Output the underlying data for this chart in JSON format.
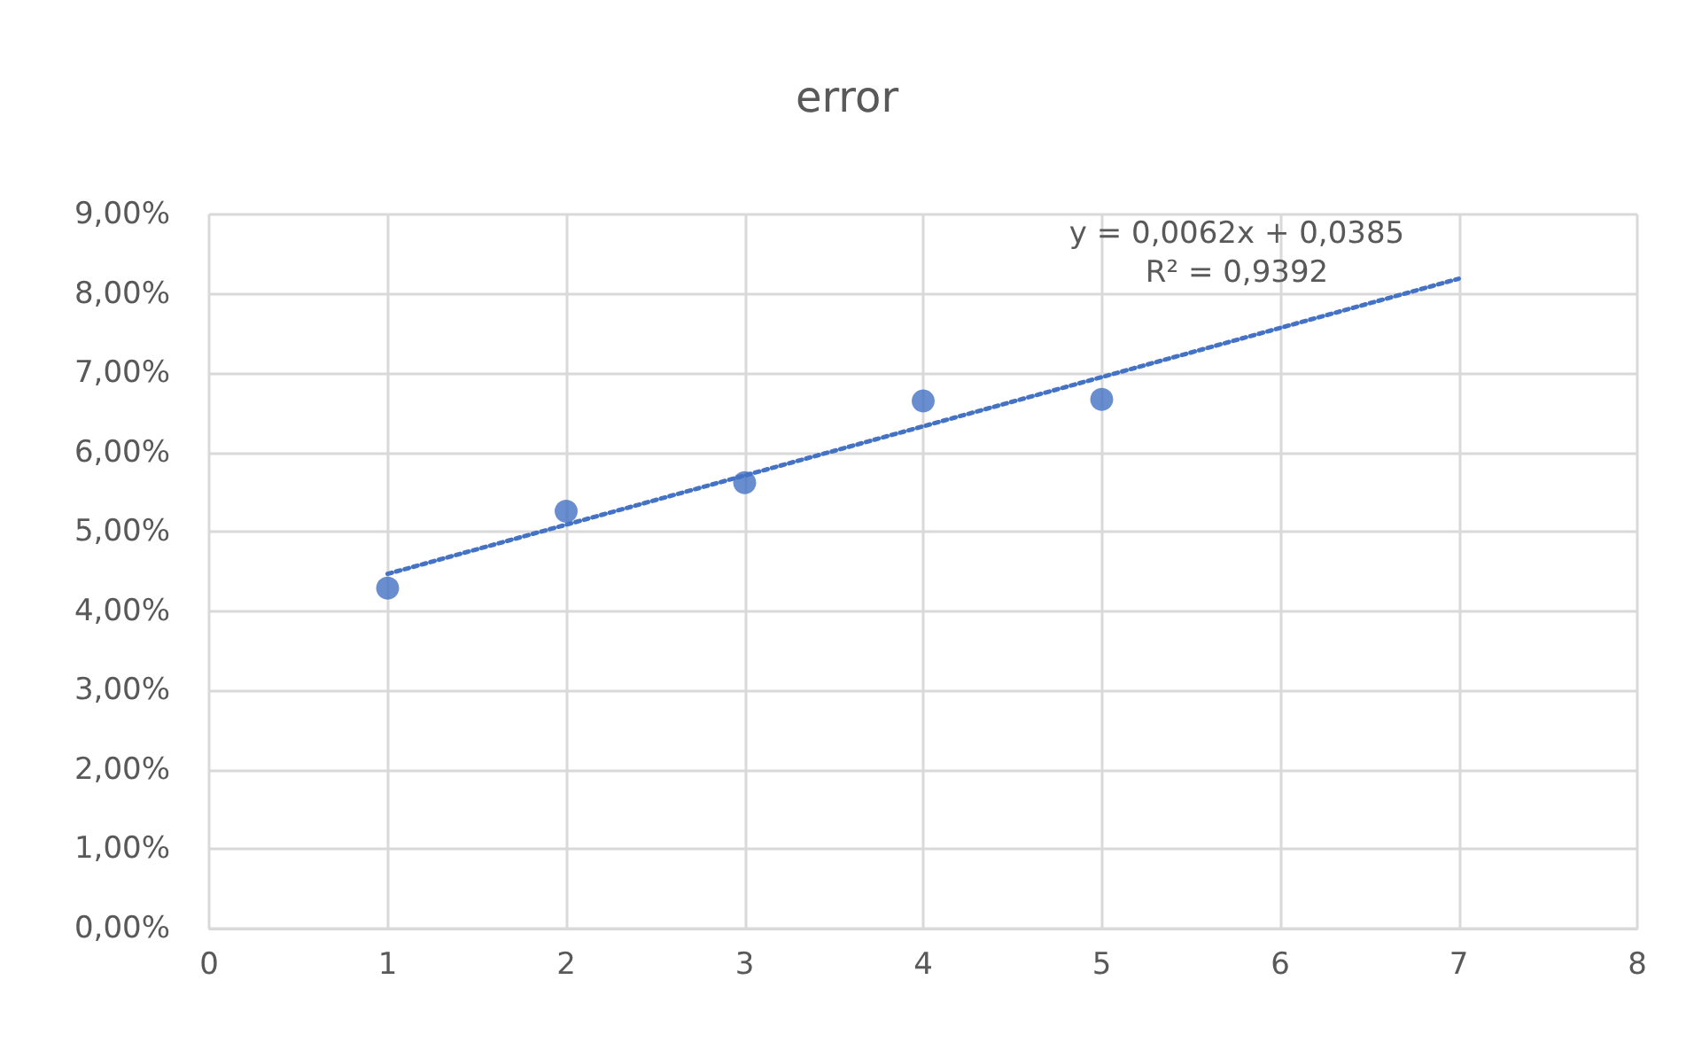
{
  "chart_data": {
    "type": "scatter",
    "title": "error",
    "x": [
      1,
      2,
      3,
      4,
      5
    ],
    "series": [
      {
        "color": "#4472c4",
        "values": [
          4.29,
          5.26,
          5.62,
          6.65,
          6.67
        ],
        "marker": "circle"
      },
      {
        "type": "line",
        "color": "#4472c4",
        "x": [
          1,
          7
        ],
        "values": [
          4.47,
          8.19
        ],
        "line_style": "dotted",
        "marker": "none"
      }
    ],
    "xlim": [
      0,
      8
    ],
    "xticks": [
      0,
      1,
      2,
      3,
      4,
      5,
      6,
      7,
      8
    ],
    "ylim": [
      0,
      9
    ],
    "yticks": [
      {
        "value": 0,
        "label": "0,00%"
      },
      {
        "value": 1,
        "label": "1,00%"
      },
      {
        "value": 2,
        "label": "2,00%"
      },
      {
        "value": 3,
        "label": "3,00%"
      },
      {
        "value": 4,
        "label": "4,00%"
      },
      {
        "value": 5,
        "label": "5,00%"
      },
      {
        "value": 6,
        "label": "6,00%"
      },
      {
        "value": 7,
        "label": "7,00%"
      },
      {
        "value": 8,
        "label": "8,00%"
      },
      {
        "value": 9,
        "label": "9,00%"
      }
    ],
    "grid": true,
    "annotations": [
      "y = 0,0062x + 0,0385",
      "R² = 0,9392"
    ]
  }
}
